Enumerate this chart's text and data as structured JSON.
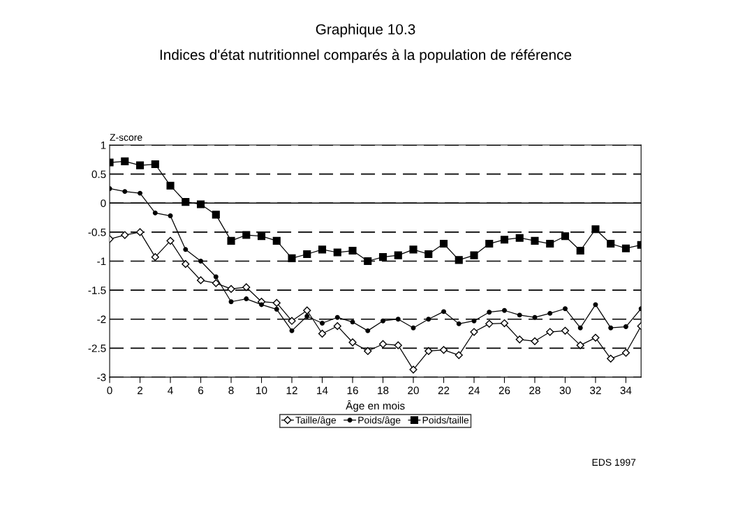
{
  "chart_data": {
    "type": "line",
    "title": "Graphique 10.3",
    "subtitle": "Indices d'état nutritionnel comparés à la population de référence",
    "xlabel": "Âge en mois",
    "ylabel": "Z-score",
    "x": [
      0,
      1,
      2,
      3,
      4,
      5,
      6,
      7,
      8,
      9,
      10,
      11,
      12,
      13,
      14,
      15,
      16,
      17,
      18,
      19,
      20,
      21,
      22,
      23,
      24,
      25,
      26,
      27,
      28,
      29,
      30,
      31,
      32,
      33,
      34,
      35
    ],
    "series": [
      {
        "name": "Taille/âge",
        "color": "#000000",
        "marker": "diamond",
        "values": [
          -0.62,
          -0.55,
          -0.5,
          -0.93,
          -0.65,
          -1.05,
          -1.33,
          -1.38,
          -1.48,
          -1.45,
          -1.7,
          -1.72,
          -2.03,
          -1.85,
          -2.25,
          -2.12,
          -2.4,
          -2.55,
          -2.43,
          -2.45,
          -2.87,
          -2.55,
          -2.53,
          -2.62,
          -2.22,
          -2.08,
          -2.07,
          -2.35,
          -2.38,
          -2.22,
          -2.2,
          -2.45,
          -2.32,
          -2.68,
          -2.58,
          -2.12
        ]
      },
      {
        "name": "Poids/âge",
        "color": "#000000",
        "marker": "circle",
        "values": [
          0.25,
          0.2,
          0.17,
          -0.17,
          -0.22,
          -0.8,
          -1.0,
          -1.27,
          -1.7,
          -1.65,
          -1.75,
          -1.83,
          -2.2,
          -1.95,
          -2.07,
          -1.97,
          -2.05,
          -2.2,
          -2.03,
          -2.0,
          -2.15,
          -2.0,
          -1.87,
          -2.08,
          -2.03,
          -1.88,
          -1.85,
          -1.93,
          -1.97,
          -1.9,
          -1.82,
          -2.15,
          -1.75,
          -2.15,
          -2.13,
          -1.82
        ]
      },
      {
        "name": "Poids/taille",
        "color": "#000000",
        "marker": "square",
        "values": [
          0.7,
          0.72,
          0.65,
          0.67,
          0.3,
          0.02,
          -0.02,
          -0.2,
          -0.65,
          -0.55,
          -0.57,
          -0.65,
          -0.95,
          -0.88,
          -0.8,
          -0.85,
          -0.82,
          -1.0,
          -0.93,
          -0.9,
          -0.8,
          -0.88,
          -0.7,
          -0.98,
          -0.9,
          -0.7,
          -0.63,
          -0.6,
          -0.65,
          -0.7,
          -0.57,
          -0.82,
          -0.45,
          -0.7,
          -0.78,
          -0.72
        ]
      }
    ],
    "xlim": [
      0,
      35
    ],
    "xticks": [
      0,
      2,
      4,
      6,
      8,
      10,
      12,
      14,
      16,
      18,
      20,
      22,
      24,
      26,
      28,
      30,
      32,
      34
    ],
    "ylim": [
      -3,
      1
    ],
    "yticks": [
      1,
      0.5,
      0,
      -0.5,
      -1,
      -1.5,
      -2,
      -2.5,
      -3
    ],
    "grid": "y",
    "line_style": "solid",
    "ref_lines": [
      {
        "axis": "y",
        "value": 0,
        "color": "#000000",
        "line_style": "solid"
      }
    ],
    "legend": "bottom",
    "annotations": [
      "EDS 1997"
    ]
  }
}
